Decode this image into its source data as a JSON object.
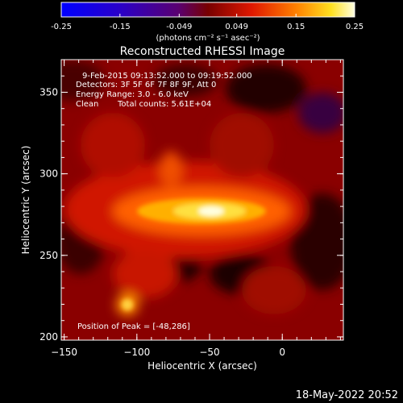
{
  "colorbar": {
    "ticks": [
      "-0.25",
      "-0.15",
      "-0.049",
      "0.049",
      "0.15",
      "0.25"
    ],
    "units": "(photons cm⁻² s⁻¹ asec⁻²)",
    "scale": [
      -0.25,
      0.25
    ]
  },
  "image": {
    "title": "Reconstructed RHESSI Image",
    "xlabel": "Heliocentric X (arcsec)",
    "ylabel": "Heliocentric Y (arcsec)",
    "x_ticks": [
      "−150",
      "−100",
      "−50",
      "0"
    ],
    "y_ticks": [
      "200",
      "250",
      "300",
      "350"
    ],
    "x_range": [
      -152,
      42
    ],
    "y_range": [
      198,
      370
    ]
  },
  "annotations": {
    "time_range": "9-Feb-2015 09:13:52.000 to 09:19:52.000",
    "detectors": "Detectors: 3F 5F 6F 7F 8F 9F, Att 0",
    "energy": "Energy Range: 3.0 - 6.0 keV",
    "method": "Clean",
    "counts": "Total counts: 5.61E+04",
    "peak": "Position of Peak = [-48,286]"
  },
  "footer": {
    "timestamp": "18-May-2022 20:52"
  },
  "colors": {
    "background": "#000000",
    "axes": "#ffffff"
  }
}
